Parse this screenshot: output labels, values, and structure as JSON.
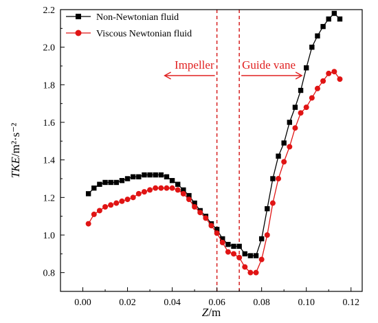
{
  "chart_data": {
    "type": "line",
    "xlabel_italic": "Z",
    "xlabel_rest": "/m",
    "ylabel_italic": "TKE",
    "ylabel_rest": "/m²·s⁻²",
    "xlim": [
      -0.01,
      0.125
    ],
    "ylim": [
      0.7,
      2.2
    ],
    "xticks": [
      0.0,
      0.02,
      0.04,
      0.06,
      0.08,
      0.1,
      0.12
    ],
    "xtick_labels": [
      "0.00",
      "0.02",
      "0.04",
      "0.06",
      "0.08",
      "0.10",
      "0.12"
    ],
    "yticks": [
      0.8,
      1.0,
      1.2,
      1.4,
      1.6,
      1.8,
      2.0,
      2.2
    ],
    "ytick_labels": [
      "0.8",
      "1.0",
      "1.2",
      "1.4",
      "1.6",
      "1.8",
      "2.0",
      "2.2"
    ],
    "legend_position": "top-left",
    "series": [
      {
        "name": "Non-Newtonian fluid",
        "color": "#000000",
        "marker": "square",
        "x": [
          0.0025,
          0.005,
          0.0075,
          0.01,
          0.0125,
          0.015,
          0.0175,
          0.02,
          0.0225,
          0.025,
          0.0275,
          0.03,
          0.0325,
          0.035,
          0.0375,
          0.04,
          0.0425,
          0.045,
          0.0475,
          0.05,
          0.0525,
          0.055,
          0.0575,
          0.06,
          0.0625,
          0.065,
          0.0675,
          0.07,
          0.0725,
          0.075,
          0.0775,
          0.08,
          0.0825,
          0.085,
          0.0875,
          0.09,
          0.0925,
          0.095,
          0.0975,
          0.1,
          0.1025,
          0.105,
          0.1075,
          0.11,
          0.1125,
          0.115
        ],
        "y": [
          1.22,
          1.25,
          1.27,
          1.28,
          1.28,
          1.28,
          1.29,
          1.3,
          1.31,
          1.31,
          1.32,
          1.32,
          1.32,
          1.32,
          1.31,
          1.29,
          1.27,
          1.24,
          1.21,
          1.17,
          1.13,
          1.1,
          1.06,
          1.03,
          0.98,
          0.95,
          0.94,
          0.94,
          0.9,
          0.89,
          0.89,
          0.98,
          1.14,
          1.3,
          1.42,
          1.49,
          1.6,
          1.68,
          1.77,
          1.89,
          2.0,
          2.06,
          2.11,
          2.15,
          2.18,
          2.15
        ]
      },
      {
        "name": "Viscous Newtonian fluid",
        "color": "#e01414",
        "marker": "circle",
        "x": [
          0.0025,
          0.005,
          0.0075,
          0.01,
          0.0125,
          0.015,
          0.0175,
          0.02,
          0.0225,
          0.025,
          0.0275,
          0.03,
          0.0325,
          0.035,
          0.0375,
          0.04,
          0.0425,
          0.045,
          0.0475,
          0.05,
          0.0525,
          0.055,
          0.0575,
          0.06,
          0.0625,
          0.065,
          0.0675,
          0.07,
          0.0725,
          0.075,
          0.0775,
          0.08,
          0.0825,
          0.085,
          0.0875,
          0.09,
          0.0925,
          0.095,
          0.0975,
          0.1,
          0.1025,
          0.105,
          0.1075,
          0.11,
          0.1125,
          0.115
        ],
        "y": [
          1.06,
          1.11,
          1.13,
          1.15,
          1.16,
          1.17,
          1.18,
          1.19,
          1.2,
          1.22,
          1.23,
          1.24,
          1.25,
          1.25,
          1.25,
          1.25,
          1.24,
          1.22,
          1.19,
          1.15,
          1.12,
          1.09,
          1.05,
          1.01,
          0.96,
          0.91,
          0.9,
          0.88,
          0.83,
          0.8,
          0.8,
          0.87,
          1.0,
          1.17,
          1.3,
          1.39,
          1.47,
          1.57,
          1.65,
          1.68,
          1.73,
          1.78,
          1.82,
          1.86,
          1.87,
          1.83
        ]
      }
    ],
    "vlines": [
      0.06,
      0.07
    ],
    "annotations": {
      "left_label": "Impeller",
      "right_label": "Guide vane",
      "color": "#e02020"
    }
  }
}
